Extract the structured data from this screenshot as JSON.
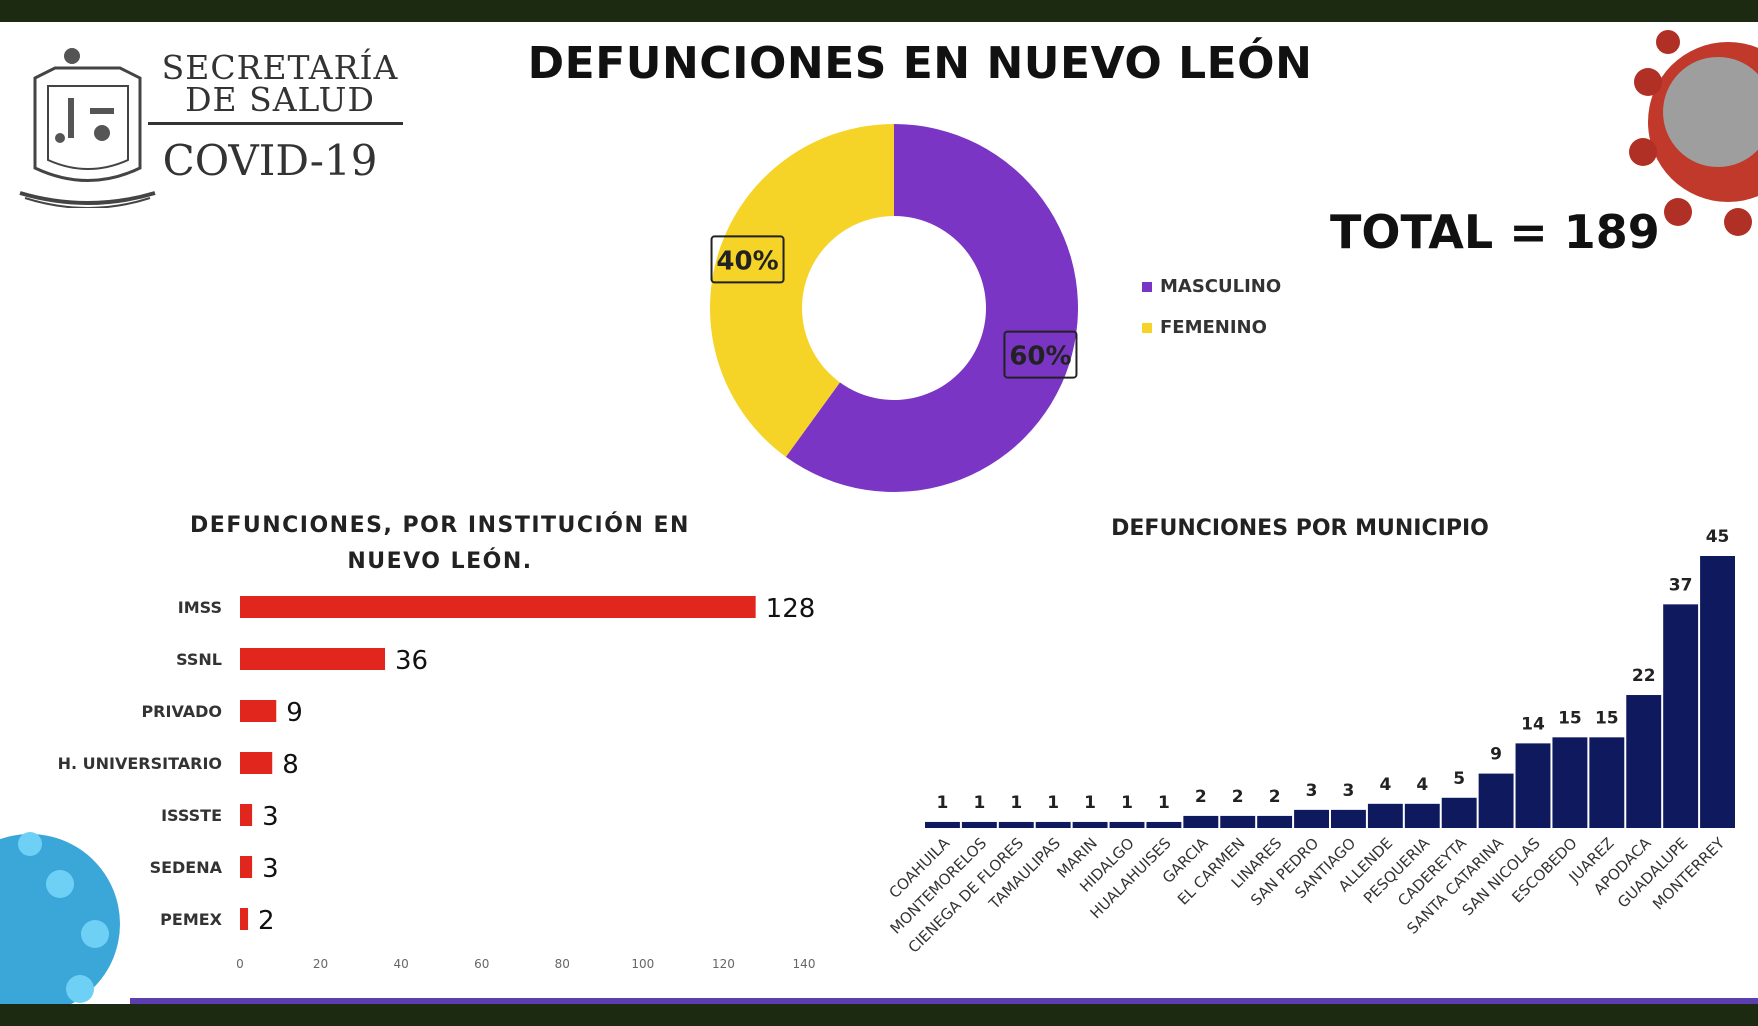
{
  "header": {
    "org_line1": "SECRETARÍA",
    "org_line2": "DE SALUD",
    "org_line3": "COVID-19",
    "title": "DEFUNCIONES EN NUEVO LEÓN",
    "total": "TOTAL = 189"
  },
  "colors": {
    "masculino": "#7b35c4",
    "femenino": "#f5d327",
    "institution_bar": "#e0261d",
    "municipio_bar": "#0f1a5e"
  },
  "chart_data": [
    {
      "type": "pie",
      "title": "",
      "labels": [
        "MASCULINO",
        "FEMENINO"
      ],
      "values": [
        60,
        40
      ],
      "data_labels": [
        "60%",
        "40%"
      ],
      "legend_placement": "right"
    },
    {
      "type": "bar",
      "orientation": "horizontal",
      "title": "DEFUNCIONES, POR INSTITUCIÓN EN NUEVO LEÓN.",
      "categories": [
        "IMSS",
        "SSNL",
        "PRIVADO",
        "H. UNIVERSITARIO",
        "ISSSTE",
        "SEDENA",
        "PEMEX"
      ],
      "values": [
        128,
        36,
        9,
        8,
        3,
        3,
        2
      ],
      "xlim": [
        0,
        140
      ],
      "xticks": [
        0,
        20,
        40,
        60,
        80,
        100,
        120,
        140
      ]
    },
    {
      "type": "bar",
      "title": "DEFUNCIONES POR MUNICIPIO",
      "categories": [
        "COAHUILA",
        "MONTEMORELOS",
        "CIENEGA DE FLORES",
        "TAMAULIPAS",
        "MARIN",
        "HIDALGO",
        "HUALAHUISES",
        "GARCIA",
        "EL CARMEN",
        "LINARES",
        "SAN PEDRO",
        "SANTIAGO",
        "ALLENDE",
        "PESQUERIA",
        "CADEREYTA",
        "SANTA CATARINA",
        "SAN NICOLAS",
        "ESCOBEDO",
        "JUAREZ",
        "APODACA",
        "GUADALUPE",
        "MONTERREY"
      ],
      "values": [
        1,
        1,
        1,
        1,
        1,
        1,
        1,
        2,
        2,
        2,
        3,
        3,
        4,
        4,
        5,
        9,
        14,
        15,
        15,
        22,
        37,
        45
      ],
      "ylim": [
        0,
        45
      ]
    }
  ]
}
